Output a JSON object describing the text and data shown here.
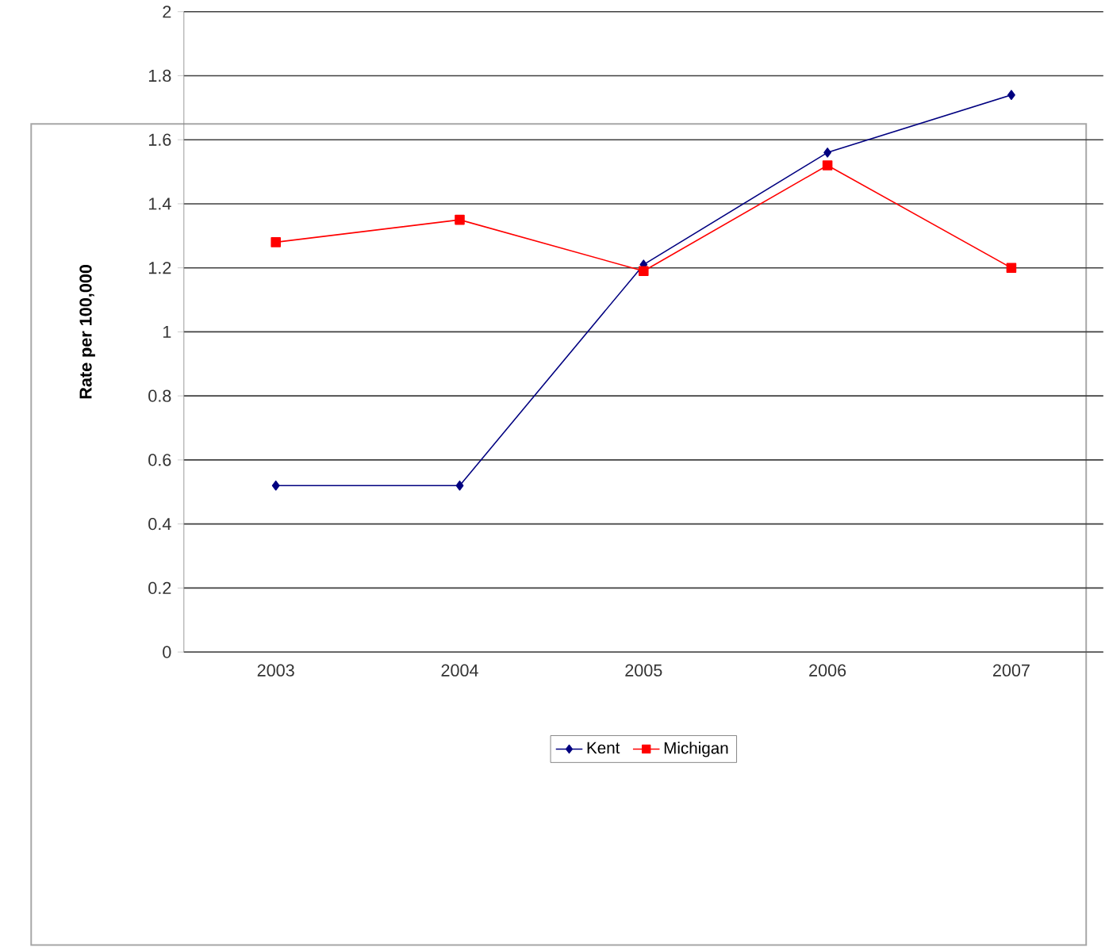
{
  "chart_data": {
    "type": "line",
    "ylabel": "Rate per 100,000",
    "categories": [
      "2003",
      "2004",
      "2005",
      "2006",
      "2007"
    ],
    "series": [
      {
        "name": "Kent",
        "color": "#000080",
        "marker": "diamond",
        "values": [
          0.52,
          0.52,
          1.21,
          1.56,
          1.74
        ]
      },
      {
        "name": "Michigan",
        "color": "#ff0000",
        "marker": "square",
        "values": [
          1.28,
          1.35,
          1.19,
          1.52,
          1.2
        ]
      }
    ],
    "ylim": [
      0,
      2
    ],
    "yticks": [
      0,
      0.2,
      0.4,
      0.6,
      0.8,
      1,
      1.2,
      1.4,
      1.6,
      1.8,
      2
    ],
    "grid": "y",
    "legend": "bottom",
    "line_style": "solid"
  }
}
